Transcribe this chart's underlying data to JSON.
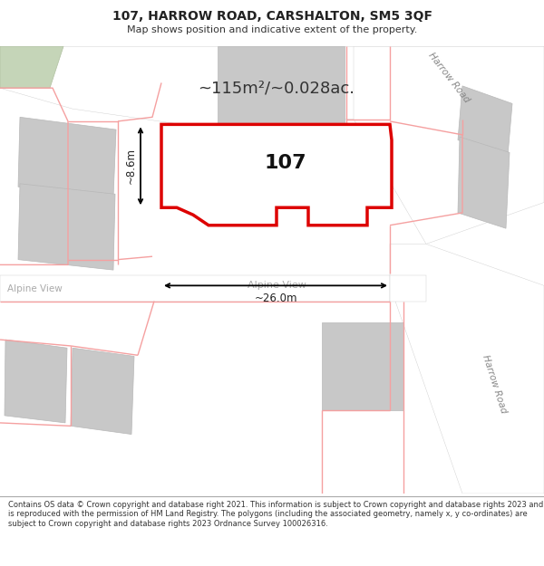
{
  "title_line1": "107, HARROW ROAD, CARSHALTON, SM5 3QF",
  "title_line2": "Map shows position and indicative extent of the property.",
  "footer_text": "Contains OS data © Crown copyright and database right 2021. This information is subject to Crown copyright and database rights 2023 and is reproduced with the permission of HM Land Registry. The polygons (including the associated geometry, namely x, y co-ordinates) are subject to Crown copyright and database rights 2023 Ordnance Survey 100026316.",
  "map_bg": "#ede9e1",
  "road_fill": "#ffffff",
  "building_fill": "#c8c8c8",
  "building_edge": "#b8b8b8",
  "green_fill": "#c5d5b8",
  "highlight_fill": "#ffffff",
  "highlight_stroke": "#dd0000",
  "pink_stroke": "#f5a0a0",
  "dark_text": "#222222",
  "gray_text": "#999999",
  "area_text": "~115m²/~0.028ac.",
  "number_text": "107",
  "dim_width": "~26.0m",
  "dim_height": "~8.6m",
  "road_label_harrow1": "Harrow Road",
  "road_label_harrow2": "Harrow Road",
  "road_label_alpine_left": "Alpine View",
  "road_label_alpine_center": "Alpine View",
  "title_fontsize": 10,
  "subtitle_fontsize": 8,
  "footer_fontsize": 6.0,
  "area_fontsize": 13,
  "number_fontsize": 16,
  "dim_fontsize": 8.5,
  "road_label_fontsize": 7.5
}
